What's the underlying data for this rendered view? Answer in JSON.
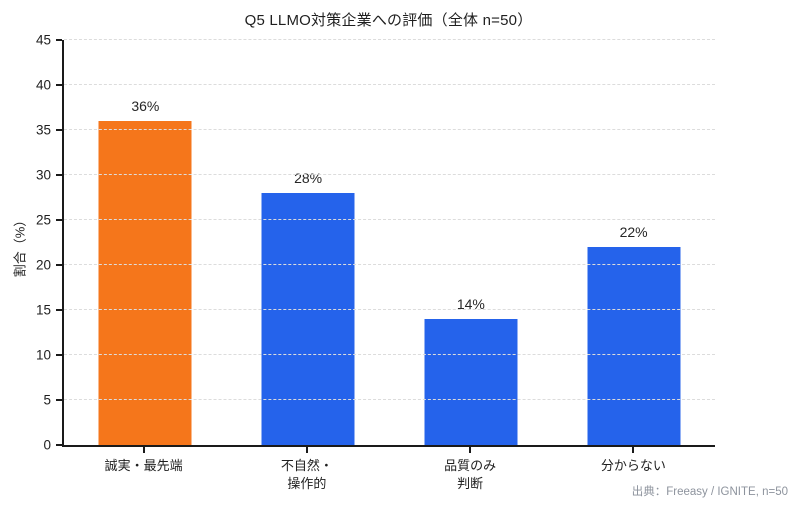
{
  "chart_data": {
    "type": "bar",
    "title": "Q5 LLMO対策企業への評価（全体 n=50）",
    "categories": [
      "誠実・最先端",
      "不自然・\n操作的",
      "品質のみ\n判断",
      "分からない"
    ],
    "values": [
      36,
      28,
      14,
      22
    ],
    "value_labels": [
      "36%",
      "28%",
      "14%",
      "22%"
    ],
    "bar_colors": [
      "#f5761b",
      "#2563eb",
      "#2563eb",
      "#2563eb"
    ],
    "xlabel": "",
    "ylabel": "割合（%）",
    "ylim": [
      0,
      45
    ],
    "ytick_step": 5,
    "grid": "horizontal-dashed",
    "legend": "none",
    "source": "出典：Freeasy / IGNITE, n=50"
  }
}
